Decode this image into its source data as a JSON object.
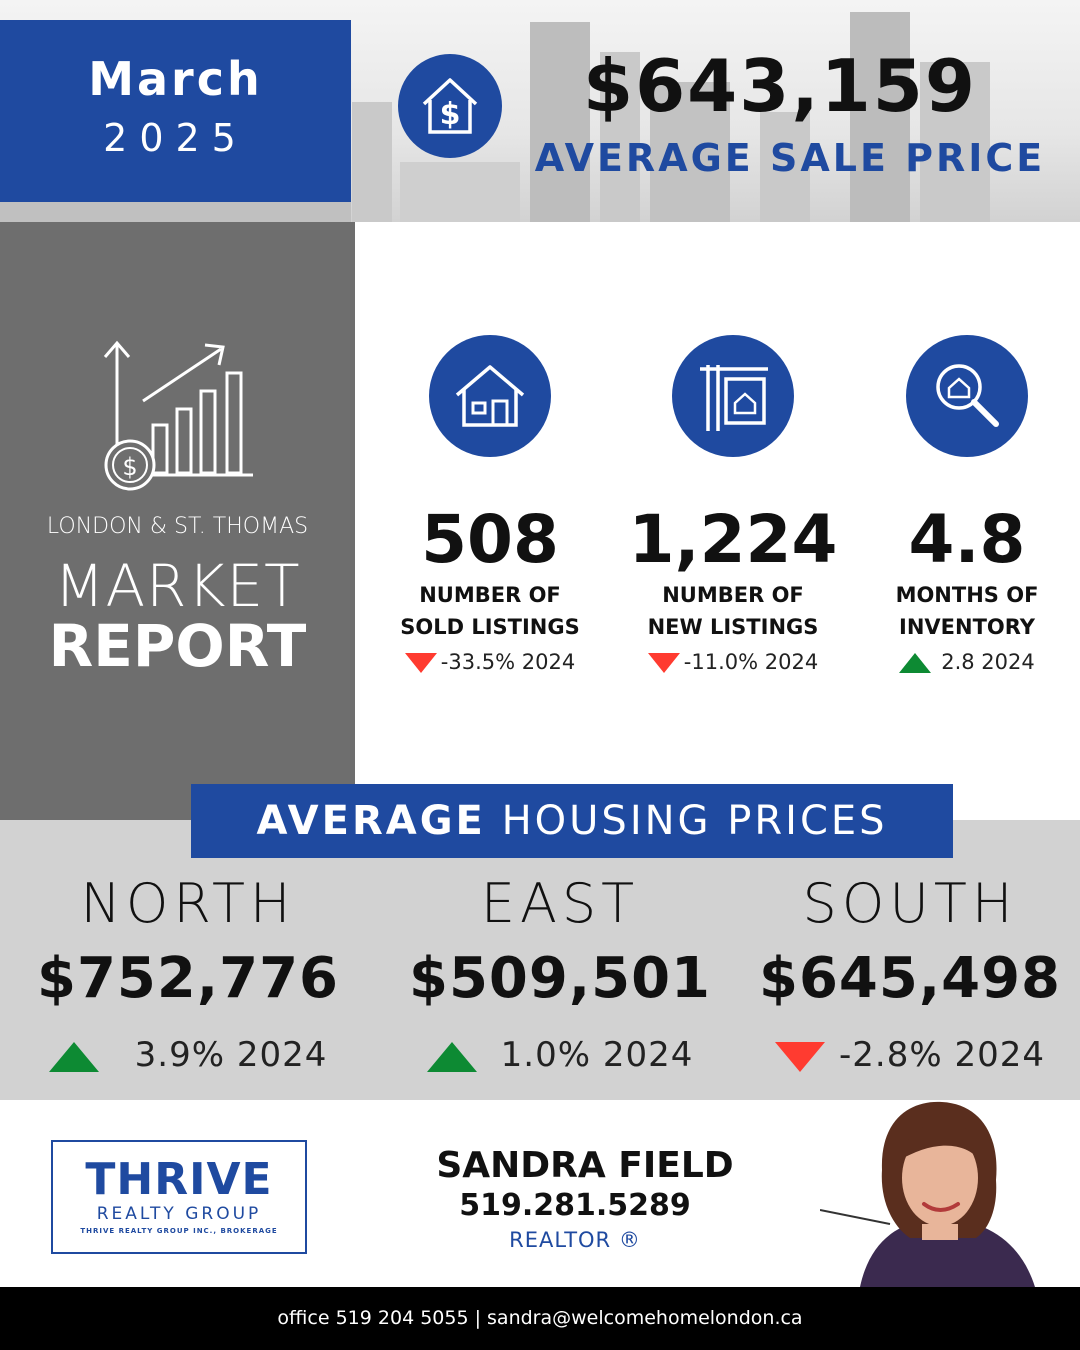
{
  "header": {
    "month": "March",
    "year": "2025",
    "avg_sale_price": "$643,159",
    "avg_sale_price_label": "AVERAGE SALE PRICE",
    "price_icon": "house-dollar-icon"
  },
  "report": {
    "region": "LONDON & ST. THOMAS",
    "title_line1": "MARKET",
    "title_line2": "REPORT",
    "icon": "growth-chart-dollar-icon"
  },
  "stats": [
    {
      "icon": "house-icon",
      "value": "508",
      "label_line1": "NUMBER OF",
      "label_line2": "SOLD LISTINGS",
      "trend": "down",
      "change": "-33.5%  2024"
    },
    {
      "icon": "for-sale-sign-icon",
      "value": "1,224",
      "label_line1": "NUMBER OF",
      "label_line2": "NEW LISTINGS",
      "trend": "down",
      "change": "-11.0% 2024"
    },
    {
      "icon": "house-search-icon",
      "value": "4.8",
      "label_line1": "MONTHS OF",
      "label_line2": "INVENTORY",
      "trend": "up",
      "change": "2.8 2024"
    }
  ],
  "housing": {
    "banner_bold": "AVERAGE",
    "banner_rest": "HOUSING PRICES",
    "areas": [
      {
        "name": "NORTH",
        "price": "$752,776",
        "trend": "up",
        "change": "3.9% 2024"
      },
      {
        "name": "EAST",
        "price": "$509,501",
        "trend": "up",
        "change": "1.0% 2024"
      },
      {
        "name": "SOUTH",
        "price": "$645,498",
        "trend": "down",
        "change": "-2.8% 2024"
      }
    ]
  },
  "brand": {
    "logo_main": "THRIVE",
    "logo_sub": "REALTY GROUP",
    "logo_tiny": "THRIVE REALTY GROUP INC., BROKERAGE"
  },
  "agent": {
    "name": "SANDRA FIELD",
    "phone": "519.281.5289",
    "title": "REALTOR ®"
  },
  "footer": {
    "contact": "office 519 204 5055 | sandra@welcomehomelondon.ca"
  },
  "colors": {
    "brand_blue": "#1f4aa0",
    "panel_gray": "#6e6e6e",
    "band_gray": "#d2d2d2",
    "up_green": "#0d8a33",
    "down_red": "#ff3b30"
  }
}
